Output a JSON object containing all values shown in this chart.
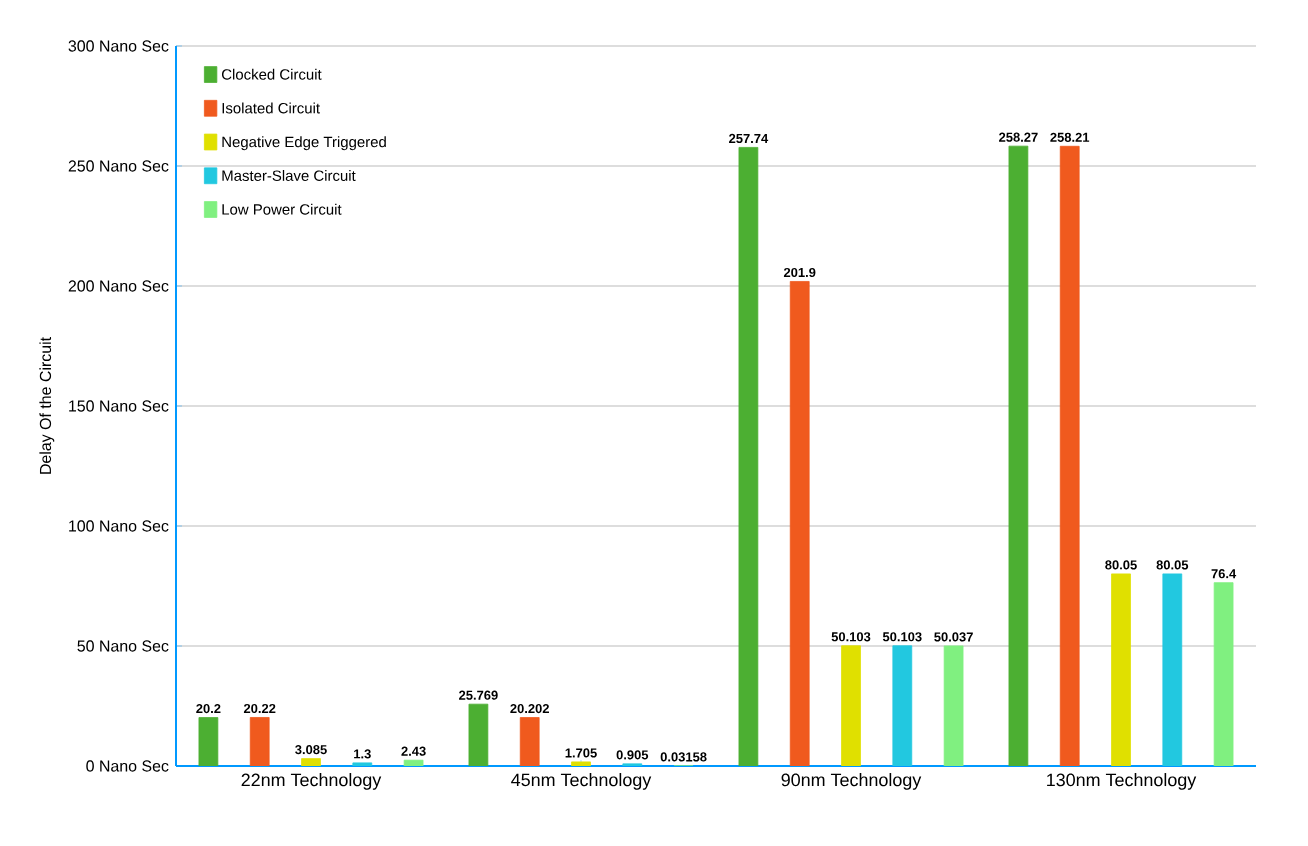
{
  "chart_data": {
    "type": "bar",
    "ylabel": "Delay Of the Circuit",
    "categories": [
      "22nm Technology",
      "45nm Technology",
      "90nm Technology",
      "130nm Technology"
    ],
    "series": [
      {
        "name": "Clocked Circuit",
        "color": "#4caf32",
        "values": [
          20.2,
          25.769,
          257.74,
          258.27
        ]
      },
      {
        "name": "Isolated Circuit",
        "color": "#f05a1e",
        "values": [
          20.22,
          20.202,
          201.9,
          258.21
        ]
      },
      {
        "name": "Negative Edge Triggered",
        "color": "#e0e000",
        "values": [
          3.085,
          1.705,
          50.103,
          80.05
        ]
      },
      {
        "name": "Master-Slave Circuit",
        "color": "#22c8e0",
        "values": [
          1.3,
          0.905,
          50.103,
          80.05
        ]
      },
      {
        "name": "Low Power Circuit",
        "color": "#80f080",
        "values": [
          2.43,
          0.03158,
          50.037,
          76.4
        ]
      }
    ],
    "ylim": [
      0,
      300
    ],
    "yticks": [
      {
        "value": 0,
        "label": "0 Nano Sec"
      },
      {
        "value": 50,
        "label": "50 Nano Sec"
      },
      {
        "value": 100,
        "label": "100 Nano Sec"
      },
      {
        "value": 150,
        "label": "150 Nano Sec"
      },
      {
        "value": 200,
        "label": "200 Nano Sec"
      },
      {
        "value": 250,
        "label": "250 Nano Sec"
      },
      {
        "value": 300,
        "label": "300 Nano Sec"
      }
    ],
    "grid": "y",
    "legend": "top left",
    "data_labels": true
  }
}
